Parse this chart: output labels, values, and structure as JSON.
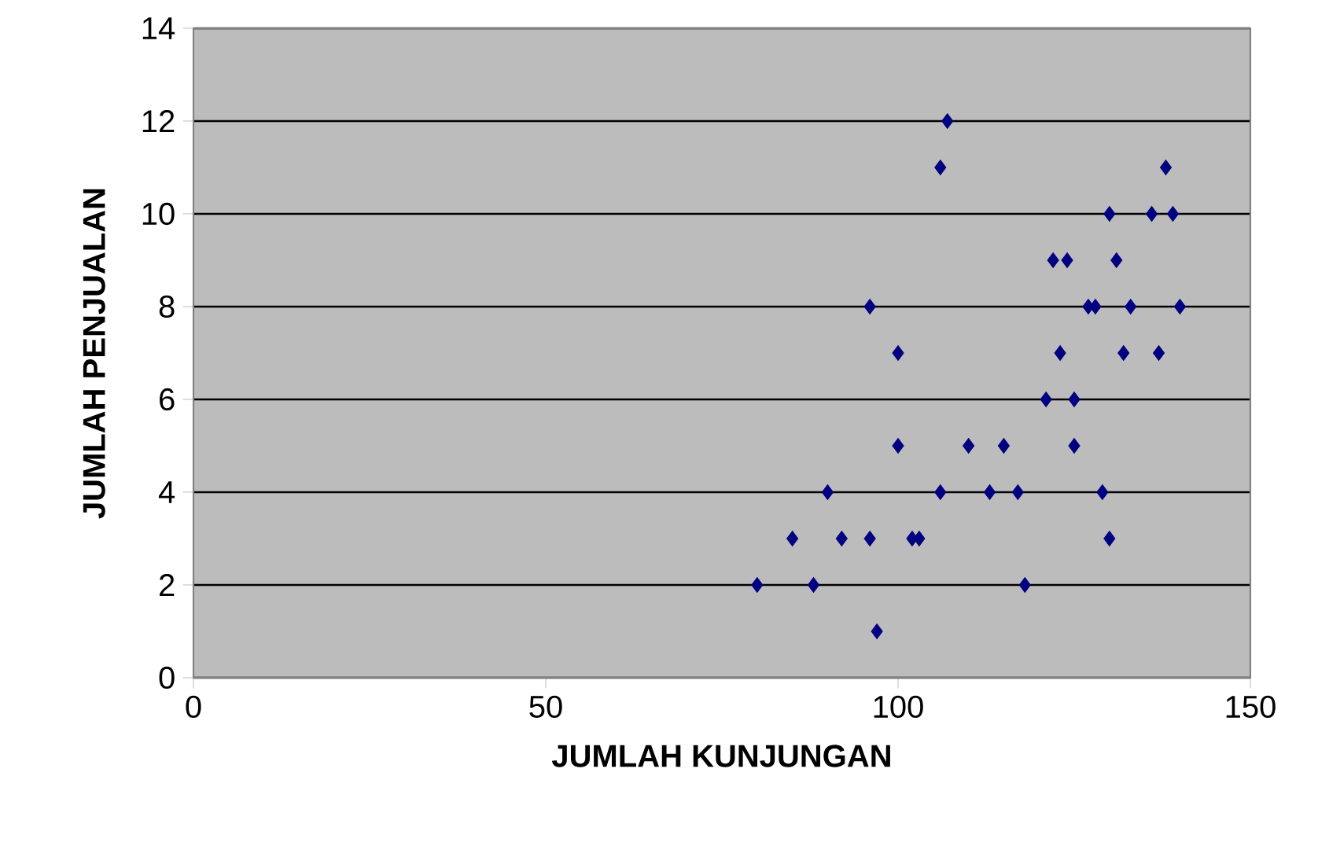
{
  "chart_data": {
    "type": "scatter",
    "xlabel": "JUMLAH KUNJUNGAN",
    "ylabel": "JUMLAH PENJUALAN",
    "x": [
      107,
      106,
      138,
      130,
      136,
      139,
      122,
      124,
      131,
      96,
      127,
      128,
      133,
      140,
      100,
      123,
      132,
      137,
      121,
      125,
      100,
      110,
      115,
      125,
      90,
      106,
      113,
      117,
      129,
      85,
      92,
      96,
      102,
      103,
      130,
      80,
      88,
      118,
      97
    ],
    "values": [
      12,
      11,
      11,
      10,
      10,
      10,
      9,
      9,
      9,
      8,
      8,
      8,
      8,
      8,
      7,
      7,
      7,
      7,
      6,
      6,
      5,
      5,
      5,
      5,
      4,
      4,
      4,
      4,
      4,
      3,
      3,
      3,
      3,
      3,
      3,
      2,
      2,
      2,
      1
    ],
    "color": "#000080",
    "marker": "diamond",
    "xlim": [
      0,
      150
    ],
    "xticks": [
      0,
      50,
      100,
      150
    ],
    "ylim": [
      0,
      14
    ],
    "yticks": [
      0,
      2,
      4,
      6,
      8,
      10,
      12,
      14
    ],
    "grid": "y"
  }
}
